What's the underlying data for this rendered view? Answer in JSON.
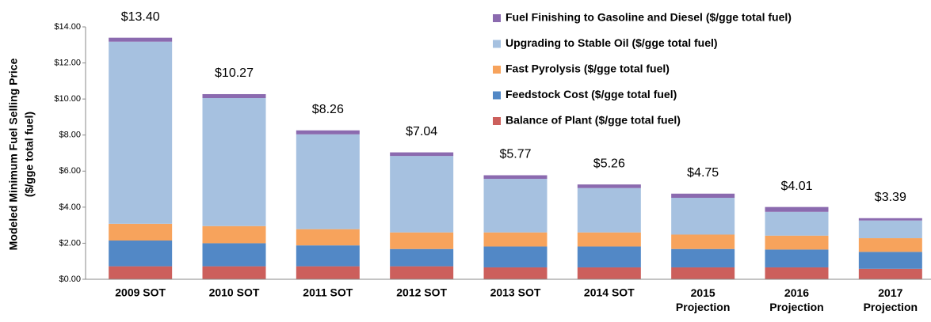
{
  "chart_data": {
    "type": "stacked_bar",
    "ylabel": [
      "Modeled Minimum Fuel Selling Price",
      "($/gge  total fuel)"
    ],
    "categories": [
      "2009 SOT",
      "2010 SOT",
      "2011 SOT",
      "2012 SOT",
      "2013 SOT",
      "2014 SOT",
      "2015 Projection",
      "2016 Projection",
      "2017 Projection"
    ],
    "series": [
      {
        "name": "Balance of Plant ($/gge total fuel)",
        "color": "#cc5f5c",
        "values": [
          0.72,
          0.72,
          0.72,
          0.72,
          0.66,
          0.66,
          0.66,
          0.66,
          0.58
        ]
      },
      {
        "name": "Feedstock Cost ($/gge total fuel)",
        "color": "#5288c6",
        "values": [
          1.43,
          1.28,
          1.16,
          0.96,
          1.16,
          1.16,
          1.02,
          0.99,
          0.94
        ]
      },
      {
        "name": "Fast Pyrolysis ($/gge total fuel)",
        "color": "#f7a35c",
        "values": [
          0.93,
          0.95,
          0.9,
          0.92,
          0.78,
          0.78,
          0.8,
          0.77,
          0.76
        ]
      },
      {
        "name": "Upgrading to Stable Oil ($/gge total fuel)",
        "color": "#a6c1e0",
        "values": [
          10.1,
          7.1,
          5.26,
          4.24,
          2.97,
          2.46,
          2.04,
          1.32,
          0.98
        ]
      },
      {
        "name": "Fuel Finishing to Gasoline and Diesel ($/gge total fuel)",
        "color": "#8b6aaf",
        "values": [
          0.22,
          0.22,
          0.22,
          0.2,
          0.2,
          0.2,
          0.23,
          0.27,
          0.13
        ]
      }
    ],
    "totals": {
      "values": [
        13.4,
        10.27,
        8.26,
        7.04,
        5.77,
        5.26,
        4.75,
        4.01,
        3.39
      ],
      "value_labels": [
        "$13.40",
        "$10.27",
        "$8.26",
        "$7.04",
        "$5.77",
        "$5.26",
        "$4.75",
        "$4.01",
        "$3.39"
      ]
    },
    "ylim": [
      0,
      14
    ],
    "yticks": [
      {
        "value": 0,
        "label": "$0.00"
      },
      {
        "value": 2,
        "label": "$2.00"
      },
      {
        "value": 4,
        "label": "$4.00"
      },
      {
        "value": 6,
        "label": "$6.00"
      },
      {
        "value": 8,
        "label": "$8.00"
      },
      {
        "value": 10,
        "label": "$10.00"
      },
      {
        "value": 12,
        "label": "$12.00"
      },
      {
        "value": 14,
        "label": "$14.00"
      }
    ],
    "legend": "top-right"
  }
}
